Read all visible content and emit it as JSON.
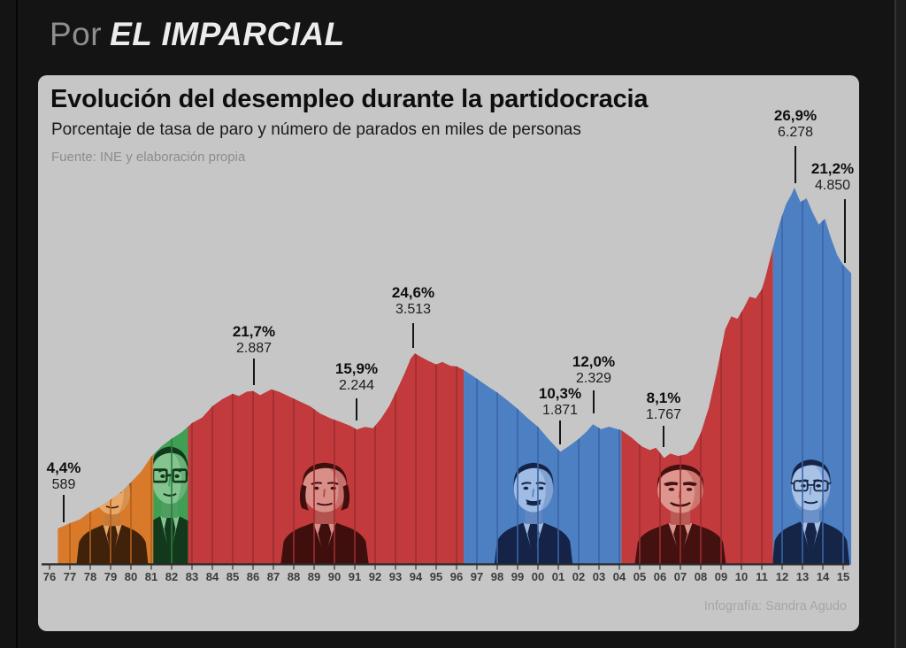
{
  "header": {
    "prefix": "Por",
    "brand": "EL IMPARCIAL"
  },
  "chart_data": {
    "type": "area",
    "title": "Evolución del desempleo durante la partidocracia",
    "subtitle": "Porcentaje de tasa de paro y número de parados en miles de personas",
    "source": "Fuente: INE y elaboración propia",
    "credit": "Infografía: Sandra Agudo",
    "x_axis": {
      "years": [
        "76",
        "77",
        "78",
        "79",
        "80",
        "81",
        "82",
        "83",
        "84",
        "85",
        "86",
        "87",
        "88",
        "89",
        "90",
        "91",
        "92",
        "93",
        "94",
        "95",
        "96",
        "97",
        "98",
        "99",
        "00",
        "01",
        "02",
        "03",
        "04",
        "05",
        "06",
        "07",
        "08",
        "09",
        "10",
        "11",
        "12",
        "13",
        "14",
        "15"
      ]
    },
    "y_axis": {
      "unit": "parados en miles de personas",
      "implied_range": [
        0,
        6600
      ]
    },
    "series": {
      "name": "Parados (miles de personas)",
      "points": [
        [
          1976.4,
          589
        ],
        [
          1977,
          680
        ],
        [
          1977.5,
          745
        ],
        [
          1978,
          870
        ],
        [
          1978.5,
          960
        ],
        [
          1979,
          1070
        ],
        [
          1979.5,
          1190
        ],
        [
          1980,
          1360
        ],
        [
          1980.5,
          1540
        ],
        [
          1981,
          1790
        ],
        [
          1981.5,
          1960
        ],
        [
          1982,
          2090
        ],
        [
          1982.5,
          2200
        ],
        [
          1983,
          2350
        ],
        [
          1983.5,
          2440
        ],
        [
          1984,
          2630
        ],
        [
          1984.5,
          2750
        ],
        [
          1985,
          2840
        ],
        [
          1985.3,
          2800
        ],
        [
          1985.7,
          2875
        ],
        [
          1986,
          2887
        ],
        [
          1986.35,
          2815
        ],
        [
          1986.9,
          2915
        ],
        [
          1987.3,
          2870
        ],
        [
          1987.8,
          2790
        ],
        [
          1988.3,
          2710
        ],
        [
          1988.8,
          2630
        ],
        [
          1989.3,
          2510
        ],
        [
          1989.8,
          2430
        ],
        [
          1990.3,
          2370
        ],
        [
          1990.8,
          2300
        ],
        [
          1991.1,
          2244
        ],
        [
          1991.5,
          2285
        ],
        [
          1991.9,
          2265
        ],
        [
          1992.3,
          2430
        ],
        [
          1992.7,
          2640
        ],
        [
          1993.1,
          2920
        ],
        [
          1993.5,
          3220
        ],
        [
          1993.75,
          3430
        ],
        [
          1993.95,
          3513
        ],
        [
          1994.3,
          3445
        ],
        [
          1994.6,
          3390
        ],
        [
          1995,
          3330
        ],
        [
          1995.3,
          3370
        ],
        [
          1995.7,
          3305
        ],
        [
          1996,
          3295
        ],
        [
          1996.35,
          3240
        ],
        [
          1997,
          3090
        ],
        [
          1997.5,
          2970
        ],
        [
          1998,
          2860
        ],
        [
          1998.5,
          2730
        ],
        [
          1999,
          2590
        ],
        [
          1999.5,
          2430
        ],
        [
          2000,
          2290
        ],
        [
          2000.5,
          2090
        ],
        [
          2001.1,
          1871
        ],
        [
          2001.5,
          1960
        ],
        [
          2002,
          2085
        ],
        [
          2002.4,
          2210
        ],
        [
          2002.7,
          2329
        ],
        [
          2003.1,
          2250
        ],
        [
          2003.5,
          2290
        ],
        [
          2004.1,
          2230
        ],
        [
          2004.6,
          2110
        ],
        [
          2005.1,
          1960
        ],
        [
          2005.5,
          1900
        ],
        [
          2005.8,
          1940
        ],
        [
          2006.2,
          1767
        ],
        [
          2006.5,
          1840
        ],
        [
          2006.9,
          1800
        ],
        [
          2007.3,
          1830
        ],
        [
          2007.6,
          1910
        ],
        [
          2008,
          2180
        ],
        [
          2008.4,
          2610
        ],
        [
          2008.8,
          3220
        ],
        [
          2009.2,
          3910
        ],
        [
          2009.5,
          4130
        ],
        [
          2009.8,
          4090
        ],
        [
          2010.1,
          4260
        ],
        [
          2010.4,
          4460
        ],
        [
          2010.7,
          4430
        ],
        [
          2011,
          4580
        ],
        [
          2011.2,
          4810
        ],
        [
          2011.55,
          5280
        ],
        [
          2011.9,
          5710
        ],
        [
          2012.2,
          6010
        ],
        [
          2012.45,
          6160
        ],
        [
          2012.6,
          6278
        ],
        [
          2012.9,
          6040
        ],
        [
          2013.2,
          6100
        ],
        [
          2013.5,
          5860
        ],
        [
          2013.8,
          5660
        ],
        [
          2014.1,
          5760
        ],
        [
          2014.4,
          5440
        ],
        [
          2014.7,
          5160
        ],
        [
          2015,
          4990
        ],
        [
          2015.4,
          4850
        ]
      ]
    },
    "annotations": [
      {
        "pct": "4,4%",
        "count": "589",
        "x": 1976.6
      },
      {
        "pct": "21,7%",
        "count": "2.887",
        "x": 1986.0
      },
      {
        "pct": "15,9%",
        "count": "2.244",
        "x": 1991.1
      },
      {
        "pct": "24,6%",
        "count": "3.513",
        "x": 1993.9
      },
      {
        "pct": "10,3%",
        "count": "1.871",
        "x": 2001.1
      },
      {
        "pct": "12,0%",
        "count": "2.329",
        "x": 2002.7
      },
      {
        "pct": "8,1%",
        "count": "1.767",
        "x": 2006.2
      },
      {
        "pct": "26,9%",
        "count": "6.278",
        "x": 2012.6
      },
      {
        "pct": "21,2%",
        "count": "4.850",
        "x": 2015.4
      }
    ],
    "eras": [
      {
        "start": 1976.4,
        "end": 1981.1,
        "color": "#D97A2B",
        "line_color": "#B25F1B"
      },
      {
        "start": 1981.1,
        "end": 1982.8,
        "color": "#3FA053",
        "line_color": "#2E7C3F"
      },
      {
        "start": 1982.8,
        "end": 1996.35,
        "color": "#C23A3C",
        "line_color": "#9C2D2F"
      },
      {
        "start": 1996.35,
        "end": 2004.1,
        "color": "#4D80C2",
        "line_color": "#3B64A6"
      },
      {
        "start": 2004.1,
        "end": 2011.55,
        "color": "#C23A3C",
        "line_color": "#9C2D2F"
      },
      {
        "start": 2011.55,
        "end": 2015.4,
        "color": "#4D80C2",
        "line_color": "#3B64A6"
      }
    ]
  }
}
